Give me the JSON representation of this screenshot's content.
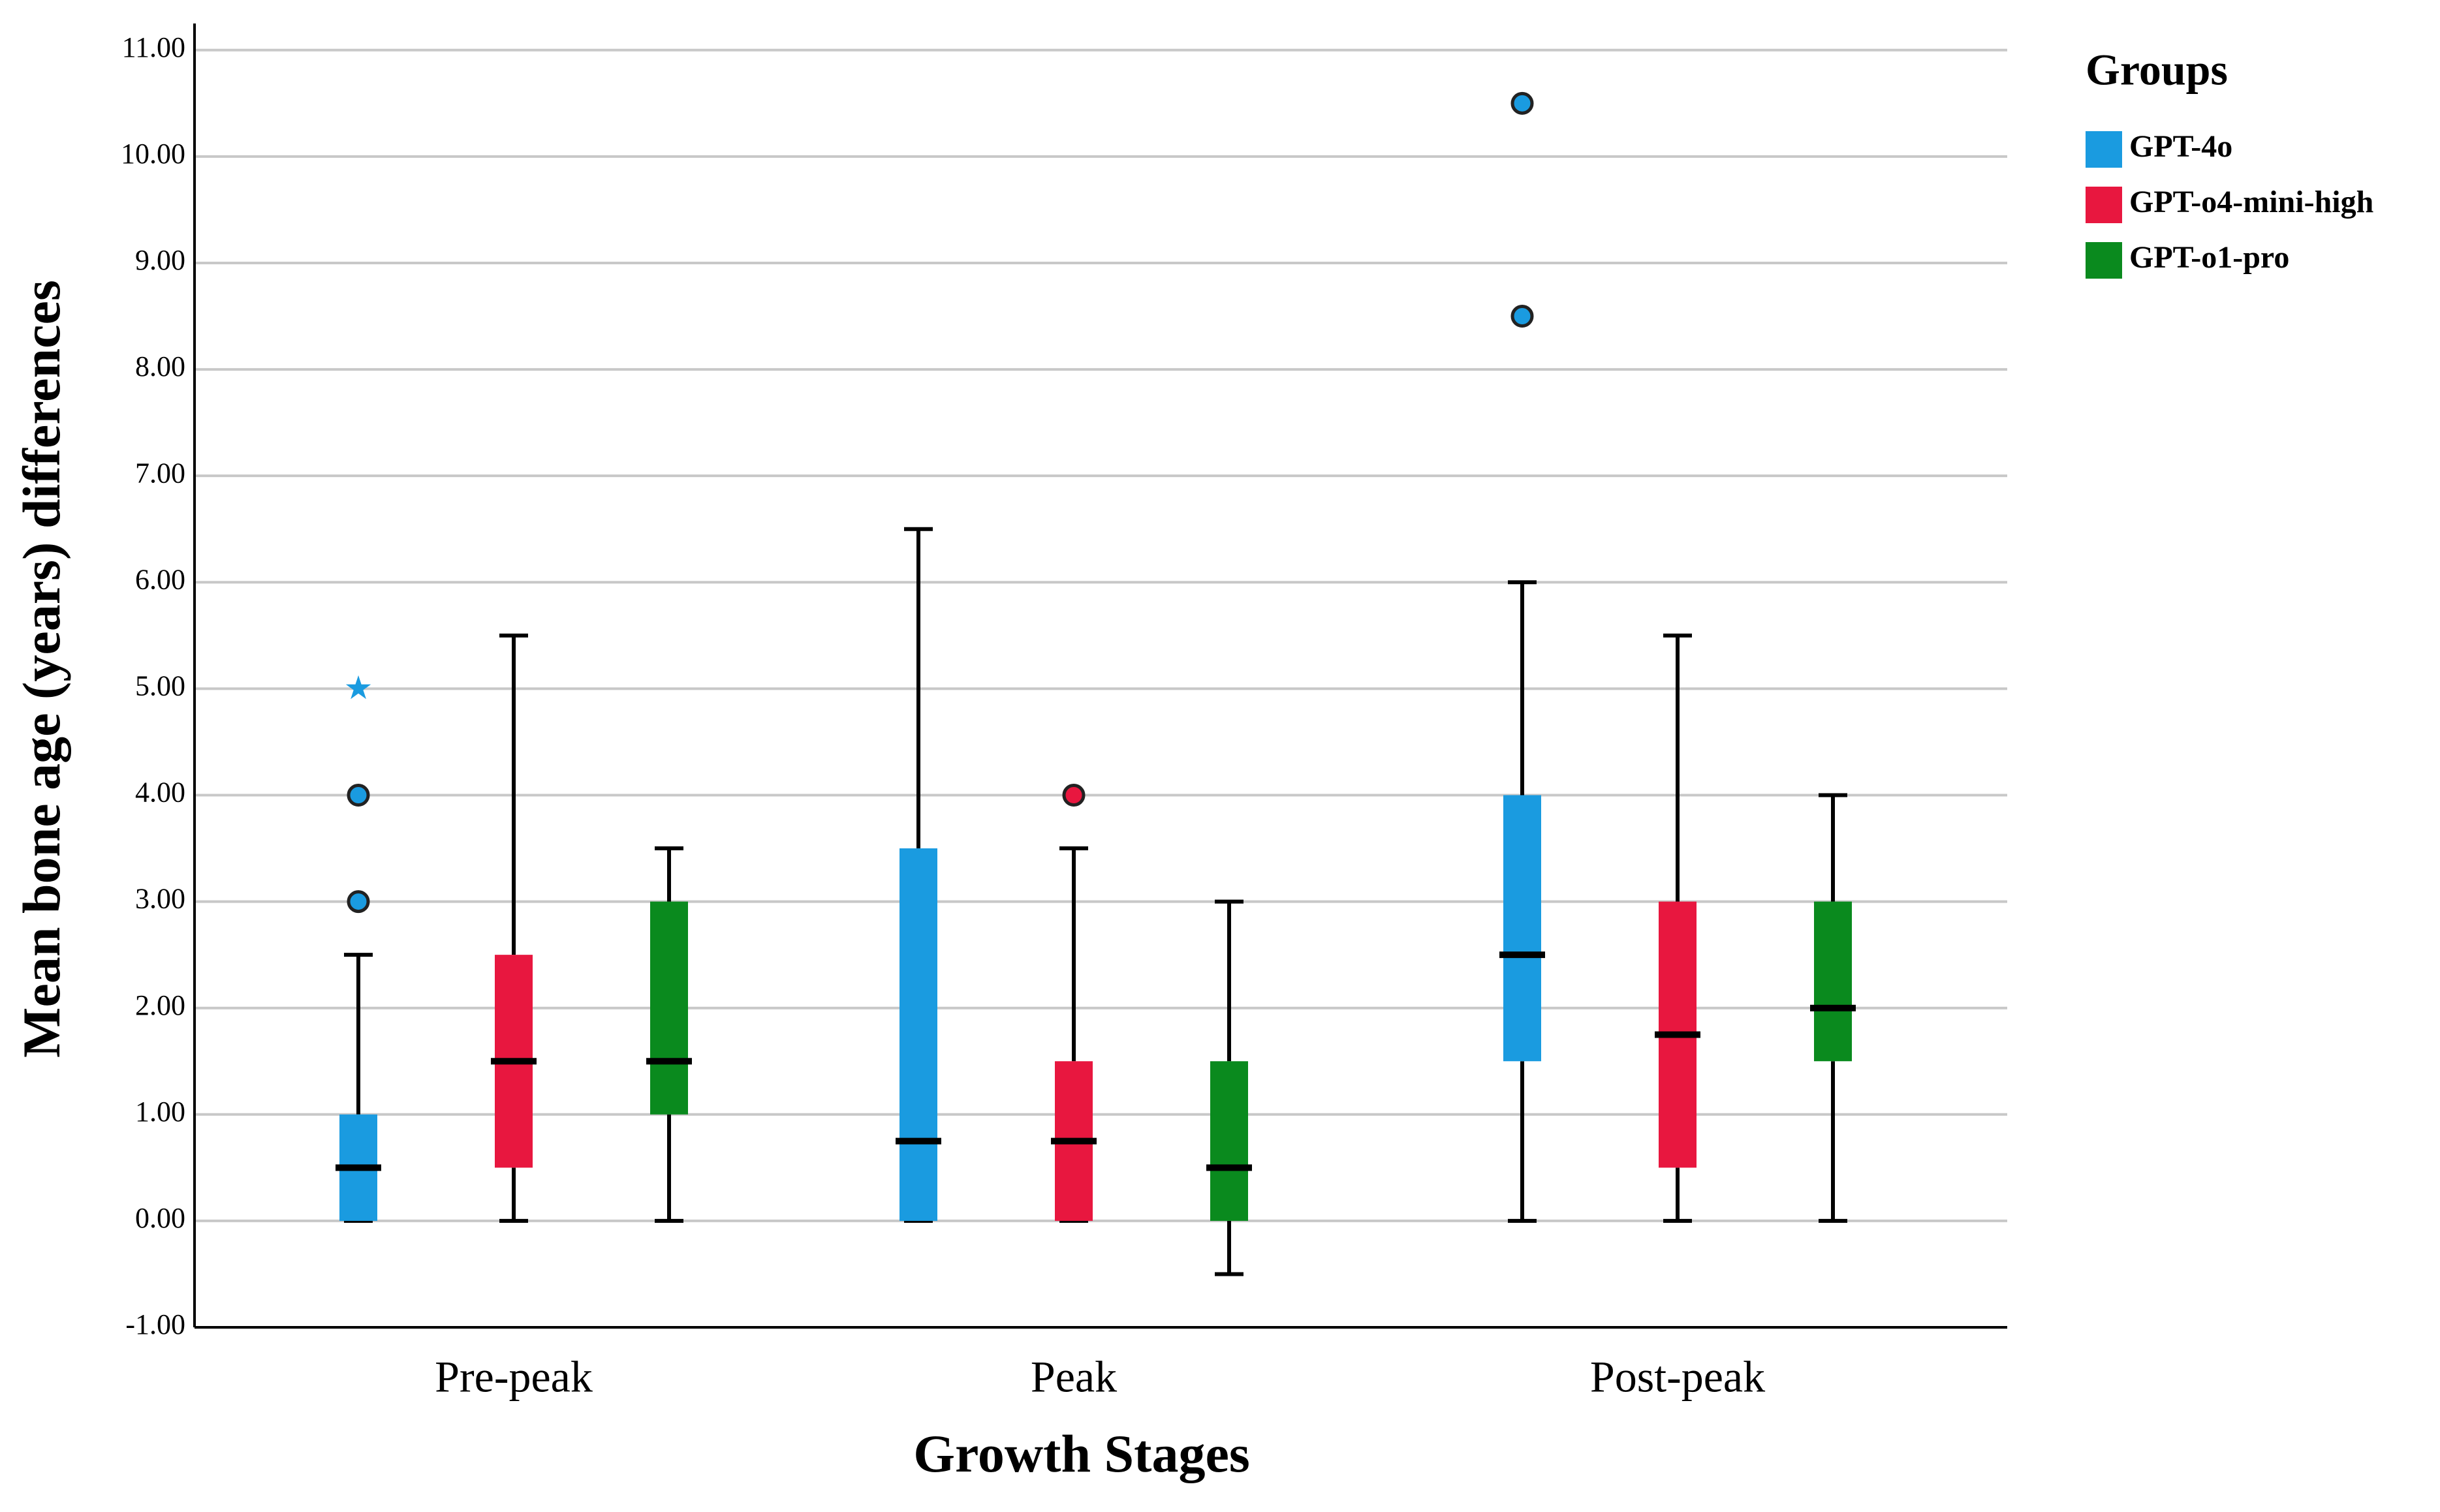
{
  "chart_data": {
    "type": "box",
    "x_label": "Growth Stages",
    "y_label": "Mean bone age (years) differences",
    "legend_title": "Groups",
    "legend_position": "right",
    "grid": true,
    "categories": [
      "Pre-peak",
      "Peak",
      "Post-peak"
    ],
    "ylim": [
      -1,
      11.25
    ],
    "yticks": [
      {
        "value": -1,
        "label": "-1.00"
      },
      {
        "value": 0,
        "label": "0.00"
      },
      {
        "value": 1,
        "label": "1.00"
      },
      {
        "value": 2,
        "label": "2.00"
      },
      {
        "value": 3,
        "label": "3.00"
      },
      {
        "value": 4,
        "label": "4.00"
      },
      {
        "value": 5,
        "label": "5.00"
      },
      {
        "value": 6,
        "label": "6.00"
      },
      {
        "value": 7,
        "label": "7.00"
      },
      {
        "value": 8,
        "label": "8.00"
      },
      {
        "value": 9,
        "label": "9.00"
      },
      {
        "value": 10,
        "label": "10.00"
      },
      {
        "value": 11,
        "label": "11.00"
      }
    ],
    "series": [
      {
        "name": "GPT-4o",
        "color": "#1a9be0",
        "boxes": [
          {
            "min": 0,
            "q1": 0,
            "median": 0.5,
            "q3": 1,
            "max": 2.5,
            "outliers": [
              3,
              4
            ],
            "extremes": [
              5
            ]
          },
          {
            "min": 0,
            "q1": 0,
            "median": 0.75,
            "q3": 3.5,
            "max": 6.5,
            "outliers": [],
            "extremes": []
          },
          {
            "min": 0,
            "q1": 1.5,
            "median": 2.5,
            "q3": 4,
            "max": 6,
            "outliers": [
              8.5,
              10.5
            ],
            "extremes": []
          }
        ]
      },
      {
        "name": "GPT-o4-mini-high",
        "color": "#e8173f",
        "boxes": [
          {
            "min": 0,
            "q1": 0.5,
            "median": 1.5,
            "q3": 2.5,
            "max": 5.5,
            "outliers": [],
            "extremes": []
          },
          {
            "min": 0,
            "q1": 0,
            "median": 0.75,
            "q3": 1.5,
            "max": 3.5,
            "outliers": [
              4
            ],
            "extremes": []
          },
          {
            "min": 0,
            "q1": 0.5,
            "median": 1.75,
            "q3": 3,
            "max": 5.5,
            "outliers": [],
            "extremes": []
          }
        ]
      },
      {
        "name": "GPT-o1-pro",
        "color": "#0a8a1e",
        "boxes": [
          {
            "min": 0,
            "q1": 1,
            "median": 1.5,
            "q3": 3,
            "max": 3.5,
            "outliers": [],
            "extremes": []
          },
          {
            "min": -0.5,
            "q1": 0,
            "median": 0.5,
            "q3": 1.5,
            "max": 3,
            "outliers": [],
            "extremes": []
          },
          {
            "min": 0,
            "q1": 1.5,
            "median": 2,
            "q3": 3,
            "max": 4,
            "outliers": [],
            "extremes": []
          }
        ]
      }
    ]
  }
}
